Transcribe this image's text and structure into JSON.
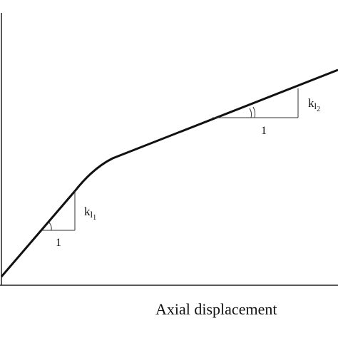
{
  "axis_label": "Axial displacement",
  "slopes": [
    {
      "symbol": "k",
      "subscript": "l",
      "index": "1",
      "run": "1"
    },
    {
      "symbol": "k",
      "subscript": "l",
      "index": "2",
      "run": "1"
    }
  ]
}
